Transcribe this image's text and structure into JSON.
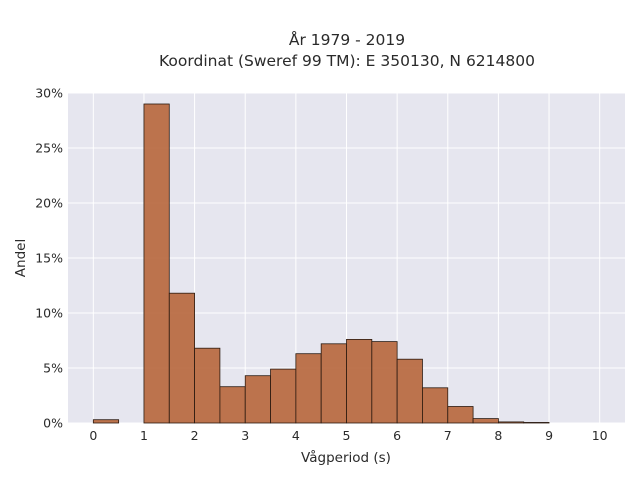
{
  "chart_data": {
    "type": "bar",
    "title": "År 1979 - 2019",
    "subtitle": "Koordinat (Sweref 99 TM): E 350130, N 6214800",
    "xlabel": "Vågperiod (s)",
    "ylabel": "Andel",
    "xlim": [
      -0.5,
      10.5
    ],
    "ylim": [
      0,
      0.3
    ],
    "x_ticks": [
      0,
      1,
      2,
      3,
      4,
      5,
      6,
      7,
      8,
      9,
      10
    ],
    "y_ticks": [
      0,
      0.05,
      0.1,
      0.15,
      0.2,
      0.25,
      0.3
    ],
    "y_tick_labels": [
      "0%",
      "5%",
      "10%",
      "15%",
      "20%",
      "25%",
      "30%"
    ],
    "bin_width": 0.5,
    "bins": [
      {
        "x": 0.0,
        "value": 0.003
      },
      {
        "x": 0.5,
        "value": 0.0
      },
      {
        "x": 1.0,
        "value": 0.29
      },
      {
        "x": 1.5,
        "value": 0.118
      },
      {
        "x": 2.0,
        "value": 0.068
      },
      {
        "x": 2.5,
        "value": 0.033
      },
      {
        "x": 3.0,
        "value": 0.043
      },
      {
        "x": 3.5,
        "value": 0.049
      },
      {
        "x": 4.0,
        "value": 0.063
      },
      {
        "x": 4.5,
        "value": 0.072
      },
      {
        "x": 5.0,
        "value": 0.076
      },
      {
        "x": 5.5,
        "value": 0.074
      },
      {
        "x": 6.0,
        "value": 0.058
      },
      {
        "x": 6.5,
        "value": 0.032
      },
      {
        "x": 7.0,
        "value": 0.015
      },
      {
        "x": 7.5,
        "value": 0.004
      },
      {
        "x": 8.0,
        "value": 0.001
      },
      {
        "x": 8.5,
        "value": 0.0005
      }
    ],
    "grid": true,
    "colors": {
      "bar_fill": "#b8693f",
      "bar_stroke": "#2b1a10",
      "plot_background": "#e6e6ef",
      "grid": "#ffffff"
    }
  }
}
